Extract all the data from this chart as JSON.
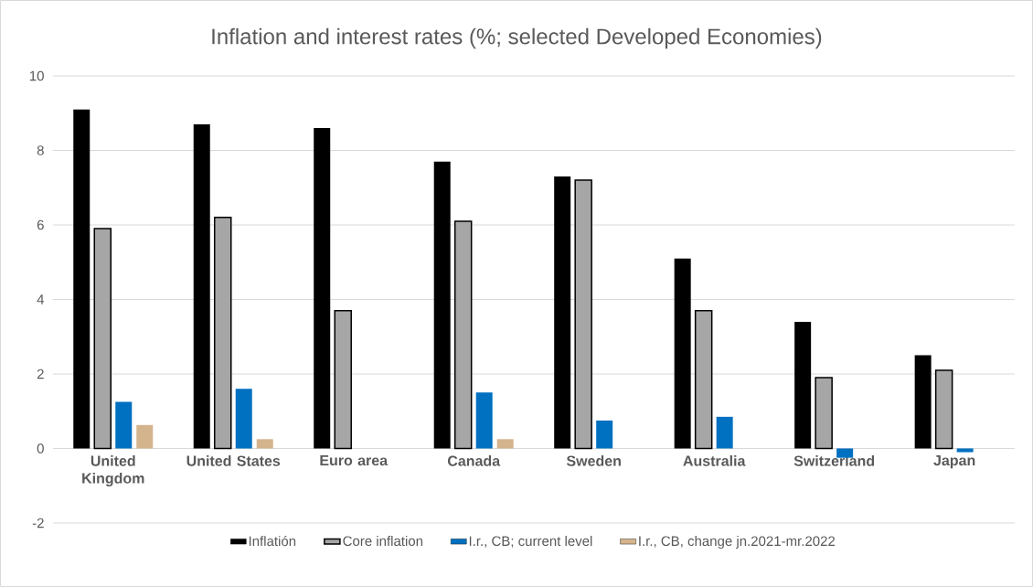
{
  "chart_data": {
    "type": "bar",
    "title": "Inflation and interest rates (%; selected Developed Economies)",
    "categories": [
      "United Kingdom",
      "United States",
      "Euro area",
      "Canada",
      "Sweden",
      "Australia",
      "Switzerland",
      "Japan"
    ],
    "series": [
      {
        "name": "Inflatión",
        "color": "#000000",
        "values": [
          9.1,
          8.7,
          8.6,
          7.7,
          7.3,
          5.1,
          3.4,
          2.5
        ]
      },
      {
        "name": "Core inflation",
        "color": "#a6a6a6",
        "values": [
          5.9,
          6.2,
          3.7,
          6.1,
          7.2,
          3.7,
          1.9,
          2.1
        ]
      },
      {
        "name": "I.r., CB; current level",
        "color": "#0070c0",
        "values": [
          1.25,
          1.6,
          null,
          1.5,
          0.75,
          0.85,
          -0.25,
          -0.1
        ]
      },
      {
        "name": "I.r., CB, change jn.2021-mr.2022",
        "color": "#d4b48c",
        "values": [
          0.63,
          0.25,
          null,
          0.25,
          null,
          null,
          null,
          null
        ]
      }
    ],
    "ylim": [
      -2,
      10
    ],
    "yticks": [
      -2,
      0,
      2,
      4,
      6,
      8,
      10
    ],
    "grid": "y",
    "legend": "bottom"
  }
}
